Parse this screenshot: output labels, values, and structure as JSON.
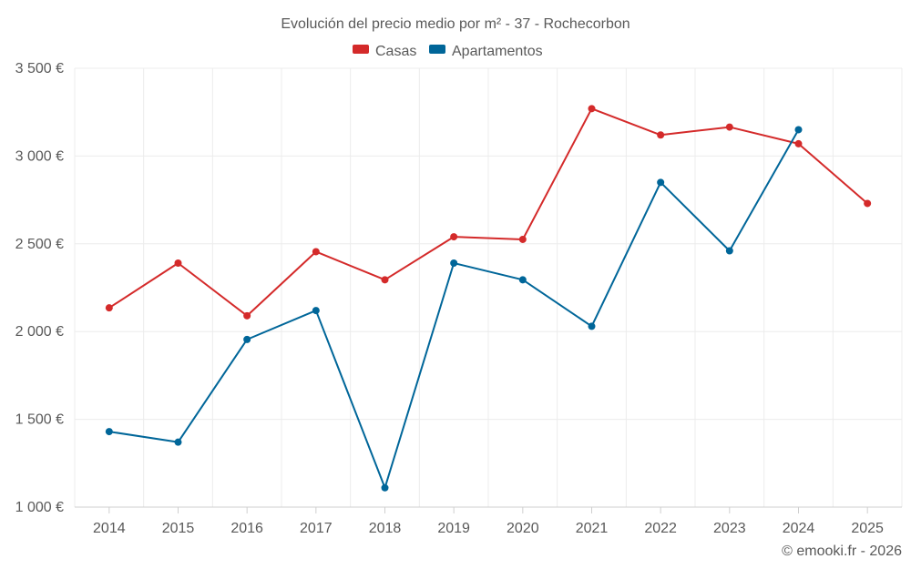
{
  "chart_data": {
    "type": "line",
    "title": "Evolución del precio medio por m² - 37 - Rochecorbon",
    "categories": [
      "2014",
      "2015",
      "2016",
      "2017",
      "2018",
      "2019",
      "2020",
      "2021",
      "2022",
      "2023",
      "2024",
      "2025"
    ],
    "series": [
      {
        "name": "Casas",
        "color": "#d42a2a",
        "values": [
          2135,
          2390,
          2090,
          2455,
          2295,
          2540,
          2525,
          3270,
          3120,
          3165,
          3070,
          2730
        ]
      },
      {
        "name": "Apartamentos",
        "color": "#006699",
        "values": [
          1430,
          1370,
          1955,
          2120,
          1110,
          2390,
          2295,
          2030,
          2850,
          2460,
          3150,
          null
        ]
      }
    ],
    "ylim": [
      1000,
      3500
    ],
    "yticks": [
      1000,
      1500,
      2000,
      2500,
      3000,
      3500
    ],
    "ytick_labels": [
      "1 000 €",
      "1 500 €",
      "2 000 €",
      "2 500 €",
      "3 000 €",
      "3 500 €"
    ],
    "grid": true,
    "legend_position": "top-center",
    "credit": "© emooki.fr - 2026"
  }
}
